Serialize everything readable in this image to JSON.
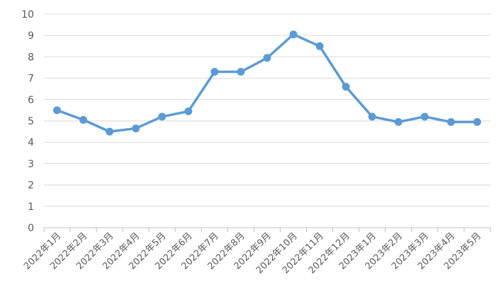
{
  "chart_data": {
    "type": "line",
    "title": "",
    "xlabel": "",
    "ylabel": "",
    "categories": [
      "2022年1月",
      "2022年2月",
      "2022年3月",
      "2022年4月",
      "2022年5月",
      "2022年6月",
      "2022年7月",
      "2022年8月",
      "2022年9月",
      "2022年10月",
      "2022年11月",
      "2022年12月",
      "2023年1月",
      "2023年2月",
      "2023年3月",
      "2023年4月",
      "2023年5月"
    ],
    "series": [
      {
        "values": [
          5.5,
          5.05,
          4.5,
          4.65,
          5.2,
          5.45,
          7.3,
          7.3,
          7.95,
          9.05,
          8.5,
          6.6,
          5.2,
          4.95,
          5.2,
          4.95,
          4.95
        ]
      }
    ],
    "ylim": [
      0,
      10
    ],
    "yticks": [
      "0",
      "1",
      "2",
      "3",
      "4",
      "5",
      "6",
      "7",
      "8",
      "9",
      "10"
    ],
    "grid": true,
    "legend": "none",
    "line_color": "#5B9BD5",
    "grid_color": "#D9D9D9",
    "axis_color": "#BFBFBF"
  }
}
